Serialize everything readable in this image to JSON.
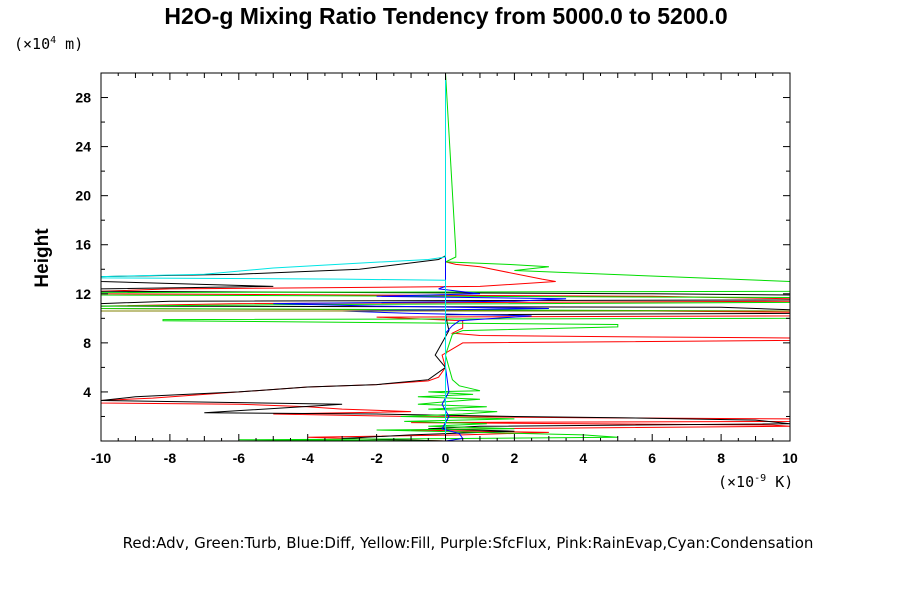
{
  "chart_data": {
    "type": "line",
    "title": "H2O-g Mixing Ratio Tendency from 5000.0 to 5200.0",
    "ylabel": "Height",
    "y_scale_label": {
      "prefix": "(×10",
      "exp": "4",
      "suffix": " m)"
    },
    "x_scale_label": {
      "prefix": "(×10",
      "exp": "-9",
      "suffix": " K)"
    },
    "xlim": [
      -10,
      10
    ],
    "ylim": [
      0,
      30
    ],
    "x_ticks": [
      -10,
      -8,
      -6,
      -4,
      -2,
      0,
      2,
      4,
      6,
      8,
      10
    ],
    "y_ticks": [
      4,
      8,
      12,
      16,
      20,
      24,
      28
    ],
    "x_tick_labels": [
      "-10",
      "-8",
      "-6",
      "-4",
      "-2",
      "0",
      "2",
      "4",
      "6",
      "8",
      "10"
    ],
    "y_tick_labels": [
      "4",
      "8",
      "12",
      "16",
      "20",
      "24",
      "28"
    ],
    "grid": false,
    "legend_text": "Red:Adv, Green:Turb, Blue:Diff, Yellow:Fill, Purple:SfcFlux, Pink:RainEvap,Cyan:Condensation",
    "series": [
      {
        "color": "#ff0000",
        "points": [
          [
            0,
            30
          ],
          [
            0,
            15.2
          ],
          [
            0,
            14.6
          ],
          [
            0.3,
            14.4
          ],
          [
            1,
            14.2
          ],
          [
            2.8,
            13.2
          ],
          [
            3.2,
            13.0
          ],
          [
            1,
            12.6
          ],
          [
            -8,
            12.4
          ],
          [
            -10,
            12.2
          ],
          [
            -10,
            12.0
          ],
          [
            6,
            11.8
          ],
          [
            10,
            11.6
          ],
          [
            10,
            11.4
          ],
          [
            -6,
            11.2
          ],
          [
            -10,
            11.0
          ],
          [
            -10,
            10.8
          ],
          [
            6,
            10.6
          ],
          [
            10,
            10.5
          ],
          [
            10,
            10.2
          ],
          [
            -2,
            10.1
          ],
          [
            0.5,
            9.8
          ],
          [
            0.5,
            9.2
          ],
          [
            0.2,
            8.8
          ],
          [
            1,
            8.6
          ],
          [
            5,
            8.5
          ],
          [
            10,
            8.4
          ],
          [
            10,
            8.2
          ],
          [
            0.5,
            8.0
          ],
          [
            -0.1,
            7.0
          ],
          [
            0,
            6.0
          ],
          [
            -0.2,
            5.2
          ],
          [
            -0.5,
            4.9
          ],
          [
            -2,
            4.6
          ],
          [
            -4,
            4.4
          ],
          [
            -5.5,
            4.1
          ],
          [
            -7,
            3.8
          ],
          [
            -8.5,
            3.5
          ],
          [
            -10,
            3.3
          ],
          [
            -10,
            3.1
          ],
          [
            -6,
            3.0
          ],
          [
            -4,
            2.8
          ],
          [
            -3,
            2.6
          ],
          [
            -1,
            2.4
          ],
          [
            -5,
            2.2
          ],
          [
            -1,
            2.0
          ],
          [
            4,
            1.9
          ],
          [
            10,
            1.8
          ],
          [
            10,
            1.6
          ],
          [
            -1,
            1.5
          ],
          [
            9.5,
            1.3
          ],
          [
            10,
            1.2
          ],
          [
            1,
            1.0
          ],
          [
            -1,
            0.9
          ],
          [
            3,
            0.7
          ],
          [
            0.5,
            0.5
          ],
          [
            -4,
            0.3
          ],
          [
            -2,
            0.15
          ],
          [
            0,
            0
          ]
        ]
      },
      {
        "color": "#000000",
        "points": [
          [
            0,
            30
          ],
          [
            0,
            15.1
          ],
          [
            -0.2,
            14.8
          ],
          [
            -2.5,
            14.0
          ],
          [
            -6,
            13.6
          ],
          [
            -10,
            13.4
          ],
          [
            -10,
            13.0
          ],
          [
            -5,
            12.6
          ],
          [
            -10,
            12.4
          ],
          [
            -10,
            12.2
          ],
          [
            6,
            12.0
          ],
          [
            10,
            11.9
          ],
          [
            10,
            11.5
          ],
          [
            -8,
            11.4
          ],
          [
            -10,
            11.2
          ],
          [
            -10,
            11.0
          ],
          [
            8,
            10.9
          ],
          [
            10,
            10.7
          ],
          [
            10,
            10.4
          ],
          [
            0,
            10.3
          ],
          [
            0.1,
            9.0
          ],
          [
            -0.3,
            7.0
          ],
          [
            0,
            6.0
          ],
          [
            -0.5,
            5.0
          ],
          [
            -2,
            4.6
          ],
          [
            -4,
            4.4
          ],
          [
            -6,
            4.0
          ],
          [
            -9,
            3.6
          ],
          [
            -10,
            3.3
          ],
          [
            -3,
            3.0
          ],
          [
            -7,
            2.3
          ],
          [
            -2,
            2.2
          ],
          [
            2,
            2.0
          ],
          [
            5,
            1.9
          ],
          [
            9,
            1.7
          ],
          [
            10,
            1.4
          ],
          [
            1,
            1.2
          ],
          [
            -0.5,
            1.0
          ],
          [
            2,
            0.8
          ],
          [
            -1,
            0.5
          ],
          [
            -3,
            0.2
          ],
          [
            0,
            0
          ]
        ]
      },
      {
        "color": "#00dd00",
        "points": [
          [
            0,
            30
          ],
          [
            0.3,
            15.5
          ],
          [
            0.3,
            15.0
          ],
          [
            0,
            14.6
          ],
          [
            1.8,
            14.4
          ],
          [
            3,
            14.2
          ],
          [
            2,
            13.9
          ],
          [
            10,
            13.0
          ],
          [
            10,
            12.2
          ],
          [
            -10,
            12.1
          ],
          [
            -10,
            11.9
          ],
          [
            10,
            11.7
          ],
          [
            10,
            11.3
          ],
          [
            -5,
            11.1
          ],
          [
            -10,
            11.0
          ],
          [
            -10,
            10.8
          ],
          [
            10,
            10.6
          ],
          [
            10,
            10.0
          ],
          [
            -8.2,
            9.9
          ],
          [
            -8.2,
            9.8
          ],
          [
            5,
            9.5
          ],
          [
            5,
            9.3
          ],
          [
            0.5,
            9.0
          ],
          [
            0.2,
            8.7
          ],
          [
            0,
            7.0
          ],
          [
            0.2,
            5.0
          ],
          [
            0.4,
            4.5
          ],
          [
            1,
            4.1
          ],
          [
            -0.5,
            4.0
          ],
          [
            0.8,
            3.8
          ],
          [
            -0.8,
            3.6
          ],
          [
            1,
            3.4
          ],
          [
            0,
            3.2
          ],
          [
            -0.8,
            3.0
          ],
          [
            1.2,
            2.8
          ],
          [
            -0.5,
            2.6
          ],
          [
            1.5,
            2.4
          ],
          [
            0.5,
            2.2
          ],
          [
            -1.3,
            2.0
          ],
          [
            2,
            1.8
          ],
          [
            -1.2,
            1.6
          ],
          [
            1.2,
            1.4
          ],
          [
            -0.5,
            1.2
          ],
          [
            2,
            1.0
          ],
          [
            -2,
            0.9
          ],
          [
            1,
            0.7
          ],
          [
            4,
            0.5
          ],
          [
            5,
            0.3
          ],
          [
            0.5,
            0.2
          ],
          [
            -6,
            0.1
          ],
          [
            0,
            0
          ]
        ]
      },
      {
        "color": "#0000ff",
        "points": [
          [
            0,
            30
          ],
          [
            0,
            12.6
          ],
          [
            -0.2,
            12.4
          ],
          [
            1,
            12.0
          ],
          [
            -2,
            11.8
          ],
          [
            3.5,
            11.6
          ],
          [
            2,
            11.4
          ],
          [
            -5,
            11.2
          ],
          [
            -2,
            11.0
          ],
          [
            3,
            10.8
          ],
          [
            -3,
            10.6
          ],
          [
            -1,
            10.4
          ],
          [
            2.5,
            10.2
          ],
          [
            0.4,
            9.8
          ],
          [
            0.2,
            9.4
          ],
          [
            0,
            8.8
          ],
          [
            0,
            6.0
          ],
          [
            0.1,
            4.0
          ],
          [
            -0.1,
            3.0
          ],
          [
            0.1,
            2.0
          ],
          [
            -0.1,
            1.0
          ],
          [
            0.4,
            0.6
          ],
          [
            0.5,
            0.2
          ],
          [
            0,
            0
          ]
        ]
      },
      {
        "color": "#808000",
        "points": [
          [
            0,
            10.6
          ],
          [
            -10,
            10.6
          ],
          [
            0,
            10.6
          ],
          [
            10,
            10.6
          ]
        ]
      },
      {
        "color": "#00e5e5",
        "points": [
          [
            0,
            30
          ],
          [
            0,
            15.0
          ],
          [
            -0.5,
            14.8
          ],
          [
            -2.5,
            14.5
          ],
          [
            -5,
            14.1
          ],
          [
            -7,
            13.6
          ],
          [
            -10,
            13.4
          ],
          [
            -10,
            13.3
          ],
          [
            -3,
            13.2
          ],
          [
            0,
            13.1
          ],
          [
            0,
            0
          ]
        ]
      }
    ]
  }
}
